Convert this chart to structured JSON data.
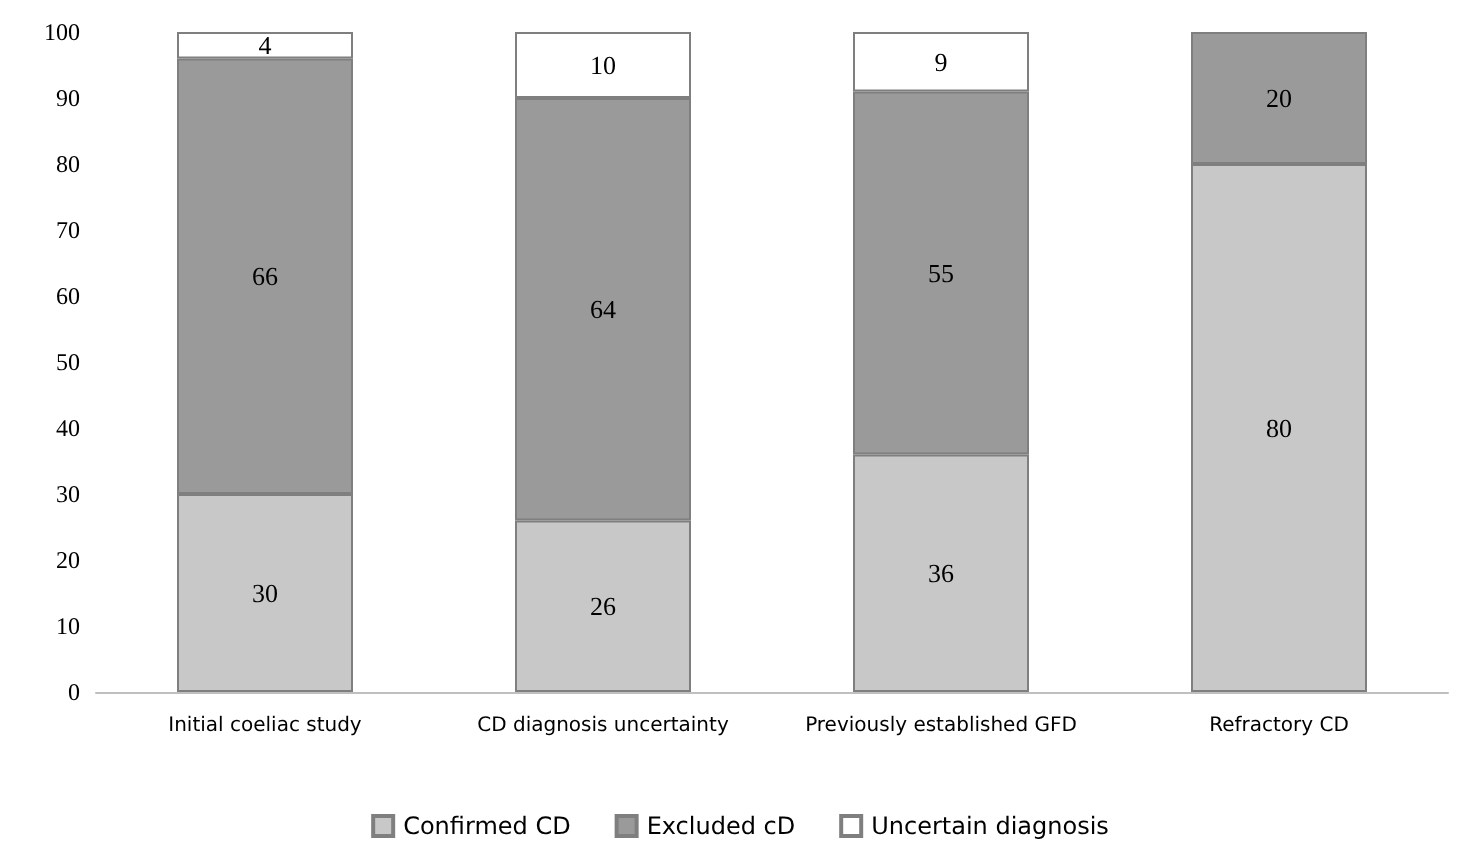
{
  "chart_data": {
    "type": "bar",
    "stacked": true,
    "categories": [
      "Initial coeliac study",
      "CD diagnosis uncertainty",
      "Previously established GFD",
      "Refractory CD"
    ],
    "series": [
      {
        "name": "Confirmed CD",
        "color": "#c8c8c8",
        "values": [
          30,
          26,
          36,
          80
        ]
      },
      {
        "name": "Excluded cD",
        "color": "#9a9a9a",
        "values": [
          66,
          64,
          55,
          20
        ]
      },
      {
        "name": "Uncertain diagnosis",
        "color": "#ffffff",
        "values": [
          4,
          10,
          9,
          null
        ]
      }
    ],
    "ylim": [
      0,
      100
    ],
    "yticks": [
      0,
      10,
      20,
      30,
      40,
      50,
      60,
      70,
      80,
      90,
      100
    ],
    "grid": false,
    "legend": "bottom",
    "data_labels": true
  }
}
